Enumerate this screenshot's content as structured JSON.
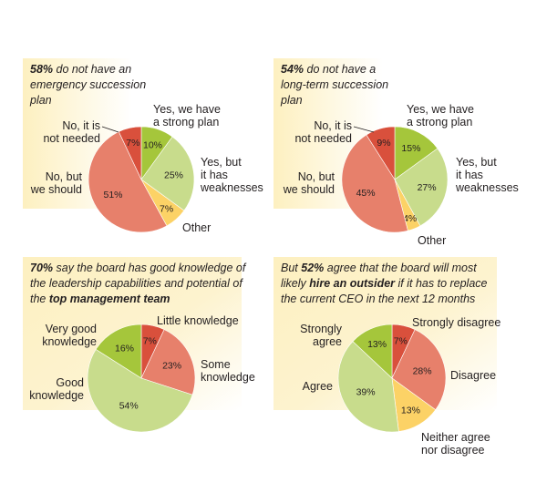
{
  "colors": {
    "strip": "#fdf3c8",
    "green": "#a5c63b",
    "lightgreen": "#c8dc8c",
    "yellow": "#fcd266",
    "salmon": "#e7806b",
    "red": "#d9503c"
  },
  "chart_data": [
    {
      "type": "pie",
      "headline": {
        "bold": "58%",
        "text": " do not have an emergency succession plan"
      },
      "slices": [
        {
          "label": "Yes, we have a strong plan",
          "value": 10,
          "display": "10%",
          "color": "#a5c63b"
        },
        {
          "label": "Yes, but it has weaknesses",
          "value": 25,
          "display": "25%",
          "color": "#c8dc8c"
        },
        {
          "label": "Other",
          "value": 7,
          "display": "7%",
          "color": "#fcd266"
        },
        {
          "label": "No, but we should",
          "value": 51,
          "display": "51%",
          "color": "#e7806b"
        },
        {
          "label": "No, it is not needed",
          "value": 7,
          "display": "7%",
          "color": "#d9503c"
        }
      ]
    },
    {
      "type": "pie",
      "headline": {
        "bold": "54%",
        "text": " do not have a long-term succession plan"
      },
      "slices": [
        {
          "label": "Yes, we have a strong plan",
          "value": 15,
          "display": "15%",
          "color": "#a5c63b"
        },
        {
          "label": "Yes, but it has weaknesses",
          "value": 27,
          "display": "27%",
          "color": "#c8dc8c"
        },
        {
          "label": "Other",
          "value": 4,
          "display": "4%",
          "color": "#fcd266"
        },
        {
          "label": "No, but we should",
          "value": 45,
          "display": "45%",
          "color": "#e7806b"
        },
        {
          "label": "No, it is not needed",
          "value": 9,
          "display": "9%",
          "color": "#d9503c"
        }
      ]
    },
    {
      "type": "pie",
      "headline": {
        "bold": "70%",
        "text": " say the board has good knowledge of the leadership capabilities and potential of the ",
        "bold2": "top management team"
      },
      "slices": [
        {
          "label": "Little knowledge",
          "value": 7,
          "display": "7%",
          "color": "#d9503c"
        },
        {
          "label": "Some knowledge",
          "value": 23,
          "display": "23%",
          "color": "#e7806b"
        },
        {
          "label": "Good knowledge",
          "value": 54,
          "display": "54%",
          "color": "#c8dc8c"
        },
        {
          "label": "Very good knowledge",
          "value": 16,
          "display": "16%",
          "color": "#a5c63b"
        }
      ]
    },
    {
      "type": "pie",
      "headline": {
        "text": "But ",
        "bold": "52%",
        "text2": " agree that the board will most likely ",
        "bold2": "hire an outsider",
        "text3": " if it has to replace the current CEO in the next 12 months"
      },
      "slices": [
        {
          "label": "Strongly disagree",
          "value": 7,
          "display": "7%",
          "color": "#d9503c"
        },
        {
          "label": "Disagree",
          "value": 28,
          "display": "28%",
          "color": "#e7806b"
        },
        {
          "label": "Neither agree nor disagree",
          "value": 13,
          "display": "13%",
          "color": "#fcd266"
        },
        {
          "label": "Agree",
          "value": 39,
          "display": "39%",
          "color": "#c8dc8c"
        },
        {
          "label": "Strongly agree",
          "value": 13,
          "display": "13%",
          "color": "#a5c63b"
        }
      ]
    }
  ]
}
